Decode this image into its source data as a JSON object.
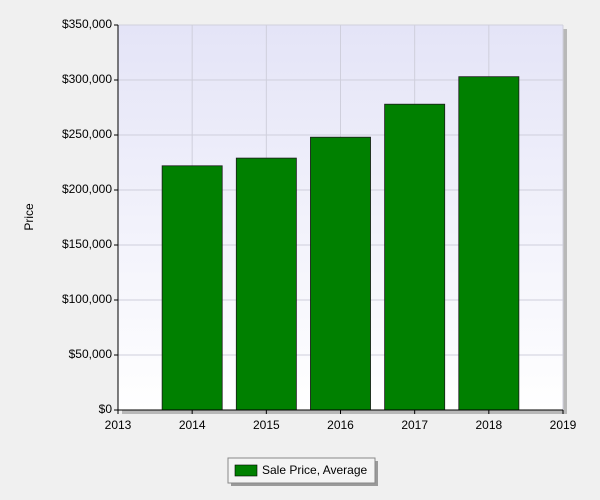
{
  "chart_data": {
    "type": "bar",
    "y_label": "Price",
    "x": [
      2014,
      2015,
      2016,
      2017,
      2018
    ],
    "series": [
      {
        "name": "Sale Price, Average",
        "color": "#008000",
        "values": [
          222000,
          229000,
          248000,
          278000,
          303000
        ]
      }
    ],
    "xlim": [
      2013,
      2019
    ],
    "xticks": [
      2013,
      2014,
      2015,
      2016,
      2017,
      2018,
      2019
    ],
    "ylim": [
      0,
      350000
    ],
    "yticks": [
      {
        "value": 0,
        "label": "$0"
      },
      {
        "value": 50000,
        "label": "$50,000"
      },
      {
        "value": 100000,
        "label": "$100,000"
      },
      {
        "value": 150000,
        "label": "$150,000"
      },
      {
        "value": 200000,
        "label": "$200,000"
      },
      {
        "value": 250000,
        "label": "$250,000"
      },
      {
        "value": 300000,
        "label": "$300,000"
      },
      {
        "value": 350000,
        "label": "$350,000"
      }
    ],
    "grid": true
  }
}
